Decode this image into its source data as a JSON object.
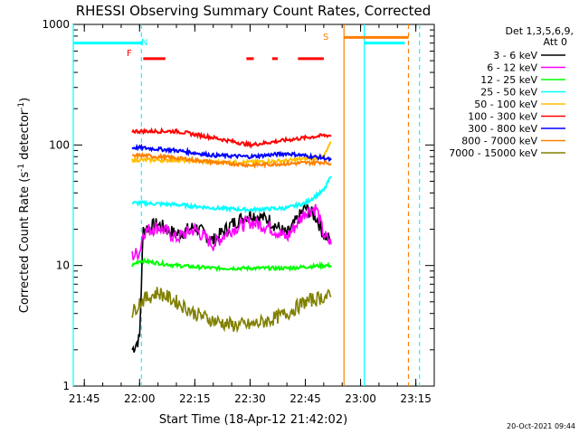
{
  "chart_data": {
    "type": "line",
    "title": "RHESSI Observing Summary Count Rates, Corrected",
    "xlabel": "Start Time (18-Apr-12 21:42:02)",
    "ylabel": "Corrected Count Rate (s⁻¹ detector⁻¹)",
    "ylabel_parts": {
      "main": "Corrected Count Rate (s",
      "sup1": "-1",
      "mid": " detector",
      "sup2": "-1",
      "end": ")"
    },
    "y_scale": "log",
    "ylim": [
      1,
      1000
    ],
    "xlim_minutes": [
      -18,
      80
    ],
    "x_ticks": [
      "21:45",
      "22:00",
      "22:15",
      "22:30",
      "22:45",
      "23:00",
      "23:15"
    ],
    "x_tick_minutes": [
      -15,
      0,
      15,
      30,
      45,
      60,
      75
    ],
    "y_ticks": [
      "1",
      "10",
      "100",
      "1000"
    ],
    "y_tick_values": [
      1,
      10,
      100,
      1000
    ],
    "legend_header": [
      "Det 1,3,5,6,9,",
      "Att 0"
    ],
    "legend_placement": "right",
    "timestamp": "20-Oct-2021 09:44",
    "flags": {
      "N": "N",
      "F": "F",
      "S": "S"
    },
    "night_segments_minutes": [
      [
        -18,
        0.5
      ],
      [
        61,
        72
      ]
    ],
    "night_level": 700,
    "flare_segments_minutes": [
      [
        1,
        7
      ],
      [
        29,
        31
      ],
      [
        36,
        37.5
      ],
      [
        43,
        50
      ]
    ],
    "flare_level": 520,
    "saa_segment_minutes": [
      55.5,
      73
    ],
    "saa_level": 780,
    "vertical_markers": [
      {
        "minute": -18,
        "color": "#00ffff",
        "style": "solid"
      },
      {
        "minute": 0.5,
        "color": "#00ffff",
        "style": "dashed"
      },
      {
        "minute": 55.5,
        "color": "#ff7f00",
        "style": "solid"
      },
      {
        "minute": 61,
        "color": "#00ffff",
        "style": "solid"
      },
      {
        "minute": 73,
        "color": "#ff7f00",
        "style": "dashed"
      },
      {
        "minute": 76,
        "color": "#00ffff",
        "style": "dashed"
      }
    ],
    "series": [
      {
        "name": "3 - 6 keV",
        "color": "#000000",
        "x": [
          -2,
          0,
          1,
          5,
          10,
          15,
          20,
          25,
          30,
          35,
          40,
          45,
          48,
          50,
          52
        ],
        "y": [
          2,
          2.5,
          20,
          22,
          18,
          21,
          16,
          22,
          27,
          24,
          18,
          30,
          25,
          18,
          16
        ]
      },
      {
        "name": "6 - 12 keV",
        "color": "#ff00ff",
        "x": [
          -2,
          0,
          1,
          5,
          10,
          15,
          20,
          25,
          30,
          35,
          40,
          45,
          48,
          50,
          52
        ],
        "y": [
          12,
          13,
          19,
          21,
          17,
          20,
          15,
          20,
          23,
          21,
          17,
          28,
          30,
          18,
          15
        ]
      },
      {
        "name": "12 - 25 keV",
        "color": "#00ff00",
        "x": [
          -2,
          0,
          10,
          20,
          30,
          40,
          50,
          52
        ],
        "y": [
          10,
          11,
          10,
          9.5,
          9.5,
          9.5,
          10,
          10
        ]
      },
      {
        "name": "25 - 50 keV",
        "color": "#00ffff",
        "x": [
          -2,
          0,
          10,
          20,
          30,
          40,
          45,
          50,
          52
        ],
        "y": [
          33,
          33,
          32,
          30,
          29,
          30,
          33,
          42,
          55
        ]
      },
      {
        "name": "50 - 100 keV",
        "color": "#ffbf00",
        "x": [
          -2,
          0,
          10,
          20,
          30,
          40,
          50,
          52
        ],
        "y": [
          75,
          75,
          75,
          72,
          72,
          74,
          80,
          105
        ]
      },
      {
        "name": "100 - 300 keV",
        "color": "#ff0000",
        "x": [
          -2,
          0,
          10,
          20,
          30,
          40,
          50,
          52
        ],
        "y": [
          130,
          130,
          130,
          115,
          100,
          110,
          120,
          120
        ]
      },
      {
        "name": "300 - 800 keV",
        "color": "#0000ff",
        "x": [
          -2,
          0,
          10,
          20,
          30,
          40,
          50,
          52
        ],
        "y": [
          95,
          95,
          90,
          82,
          80,
          85,
          78,
          75
        ]
      },
      {
        "name": "800 - 7000 keV",
        "color": "#ff8000",
        "x": [
          -2,
          0,
          10,
          20,
          30,
          40,
          50,
          52
        ],
        "y": [
          80,
          82,
          78,
          72,
          68,
          70,
          72,
          70
        ]
      },
      {
        "name": "7000 - 15000 keV",
        "color": "#808000",
        "x": [
          -2,
          0,
          5,
          10,
          15,
          20,
          25,
          30,
          35,
          40,
          45,
          50,
          52
        ],
        "y": [
          4,
          5,
          6,
          5,
          4,
          3.5,
          3.2,
          3.2,
          3.5,
          4,
          5,
          5.5,
          5.5
        ]
      }
    ]
  }
}
